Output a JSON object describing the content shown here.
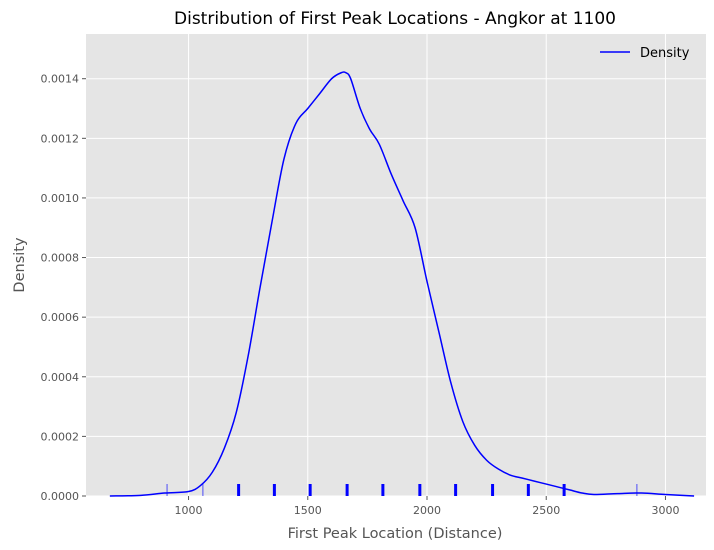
{
  "chart_data": {
    "type": "line",
    "title": "Distribution of First Peak Locations - Angkor at 1100",
    "xlabel": "First Peak Location (Distance)",
    "ylabel": "Density",
    "xlim": [
      570,
      3170
    ],
    "ylim": [
      0,
      0.00155
    ],
    "x_ticks": [
      1000,
      1500,
      2000,
      2500,
      3000
    ],
    "x_tick_labels": [
      "1000",
      "1500",
      "2000",
      "2500",
      "3000"
    ],
    "y_ticks": [
      0,
      0.0002,
      0.0004,
      0.0006,
      0.0008,
      0.001,
      0.0012,
      0.0014
    ],
    "y_tick_labels": [
      "0.0000",
      "0.0002",
      "0.0004",
      "0.0006",
      "0.0008",
      "0.0010",
      "0.0012",
      "0.0014"
    ],
    "grid": true,
    "legend_position": "top-right",
    "series": [
      {
        "name": "Density",
        "color": "#0000ff",
        "x": [
          670,
          800,
          900,
          1000,
          1050,
          1100,
          1150,
          1200,
          1250,
          1300,
          1350,
          1400,
          1450,
          1500,
          1550,
          1600,
          1640,
          1660,
          1680,
          1720,
          1760,
          1800,
          1850,
          1900,
          1950,
          2000,
          2050,
          2100,
          2150,
          2200,
          2250,
          2300,
          2350,
          2400,
          2450,
          2500,
          2550,
          2600,
          2650,
          2700,
          2800,
          2900,
          3000,
          3120
        ],
        "y": [
          0.0,
          2e-06,
          1e-05,
          1.5e-05,
          3.5e-05,
          8e-05,
          0.00016,
          0.00028,
          0.00047,
          0.0007,
          0.00092,
          0.00113,
          0.00125,
          0.0013,
          0.00135,
          0.0014,
          0.00142,
          0.00142,
          0.0014,
          0.0013,
          0.00123,
          0.00118,
          0.00108,
          0.00099,
          0.0009,
          0.00072,
          0.00055,
          0.00038,
          0.00025,
          0.00017,
          0.00012,
          9e-05,
          7e-05,
          6e-05,
          5e-05,
          4e-05,
          3e-05,
          2e-05,
          1e-05,
          5e-06,
          8e-06,
          1e-05,
          5e-06,
          0.0
        ]
      }
    ],
    "rug": {
      "color": "#0000ff",
      "positions": [
        910,
        1060,
        1210,
        1360,
        1510,
        1665,
        1815,
        1970,
        2120,
        2275,
        2425,
        2575,
        2880
      ],
      "strength": [
        0.5,
        0.5,
        1,
        1,
        1,
        1,
        1,
        1,
        1,
        1,
        1,
        1,
        0.5
      ]
    }
  }
}
